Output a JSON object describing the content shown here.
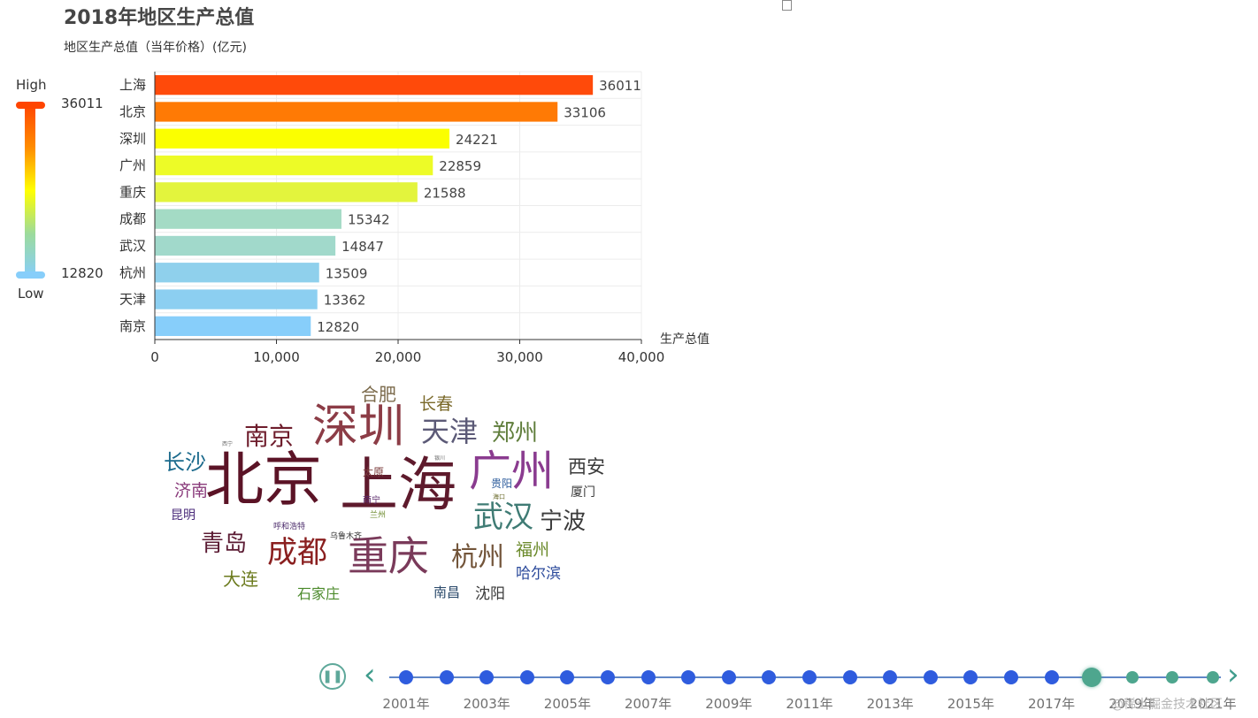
{
  "title": "2018年地区生产总值",
  "subtitle": "地区生产总值（当年价格）(亿元)",
  "visual_map": {
    "high_label": "High",
    "low_label": "Low",
    "max_value": "36011",
    "min_value": "12820",
    "colors": [
      "#ff4500",
      "#ff8c00",
      "#ffff00",
      "#9cdb9c",
      "#87cefa"
    ]
  },
  "chart_data": [
    {
      "type": "bar",
      "orientation": "horizontal",
      "title": "2018年地区生产总值",
      "subtitle": "地区生产总值（当年价格）(亿元)",
      "categories": [
        "上海",
        "北京",
        "深圳",
        "广州",
        "重庆",
        "成都",
        "武汉",
        "杭州",
        "天津",
        "南京"
      ],
      "values": [
        36011,
        33106,
        24221,
        22859,
        21588,
        15342,
        14847,
        13509,
        13362,
        12820
      ],
      "bar_colors": [
        "#ff4a0a",
        "#ff7a05",
        "#fbff00",
        "#edfb27",
        "#e3f43d",
        "#a4dbc5",
        "#a1d9cb",
        "#8fd0ec",
        "#8ccff1",
        "#87cefa"
      ],
      "xlabel": "生产总值",
      "xlim": [
        0,
        40000
      ],
      "xticks": [
        "0",
        "10,000",
        "20,000",
        "30,000",
        "40,000"
      ],
      "grid": true
    },
    {
      "type": "wordcloud",
      "words": [
        {
          "text": "北京",
          "size": 66,
          "color": "#5b1326"
        },
        {
          "text": "上海",
          "size": 66,
          "color": "#5e1a2c"
        },
        {
          "text": "深圳",
          "size": 52,
          "color": "#8c3c46"
        },
        {
          "text": "广州",
          "size": 48,
          "color": "#8a3b8f"
        },
        {
          "text": "重庆",
          "size": 46,
          "color": "#7a3a5a"
        },
        {
          "text": "天津",
          "size": 32,
          "color": "#5c5a77"
        },
        {
          "text": "武汉",
          "size": 34,
          "color": "#3f7b74"
        },
        {
          "text": "成都",
          "size": 34,
          "color": "#8a1f1f"
        },
        {
          "text": "杭州",
          "size": 30,
          "color": "#73553a"
        },
        {
          "text": "南京",
          "size": 28,
          "color": "#6e1d2c"
        },
        {
          "text": "郑州",
          "size": 26,
          "color": "#5f7d3b"
        },
        {
          "text": "宁波",
          "size": 26,
          "color": "#3b3b3b"
        },
        {
          "text": "青岛",
          "size": 26,
          "color": "#5b1b33"
        },
        {
          "text": "长沙",
          "size": 24,
          "color": "#1b6a8c"
        },
        {
          "text": "西安",
          "size": 21,
          "color": "#3b3b3b"
        },
        {
          "text": "大连",
          "size": 20,
          "color": "#6b7a1c"
        },
        {
          "text": "合肥",
          "size": 20,
          "color": "#7b6a4b"
        },
        {
          "text": "济南",
          "size": 19,
          "color": "#8a3b7b"
        },
        {
          "text": "长春",
          "size": 19,
          "color": "#7b6a2b"
        },
        {
          "text": "福州",
          "size": 19,
          "color": "#6b8a2b"
        },
        {
          "text": "哈尔滨",
          "size": 17,
          "color": "#2b4a9b"
        },
        {
          "text": "沈阳",
          "size": 17,
          "color": "#3b3b3b"
        },
        {
          "text": "石家庄",
          "size": 16,
          "color": "#4b8a2b"
        },
        {
          "text": "南昌",
          "size": 15,
          "color": "#2b4a6b"
        },
        {
          "text": "昆明",
          "size": 14,
          "color": "#4b2b7b"
        },
        {
          "text": "厦门",
          "size": 14,
          "color": "#3b3b3b"
        },
        {
          "text": "贵阳",
          "size": 12,
          "color": "#2b5b9b"
        },
        {
          "text": "太原",
          "size": 12,
          "color": "#7b3b3b"
        },
        {
          "text": "南宁",
          "size": 10,
          "color": "#5b2b6b"
        },
        {
          "text": "兰州",
          "size": 9,
          "color": "#6b8a2b"
        },
        {
          "text": "呼和浩特",
          "size": 9,
          "color": "#4b2b6b"
        },
        {
          "text": "乌鲁木齐",
          "size": 9,
          "color": "#3b3b3b"
        },
        {
          "text": "海口",
          "size": 7,
          "color": "#6b6b2b"
        },
        {
          "text": "西宁",
          "size": 6,
          "color": "#6b6b6b"
        },
        {
          "text": "银川",
          "size": 6,
          "color": "#6b6b6b"
        }
      ]
    }
  ],
  "timeline": {
    "play_icon": "pause-icon",
    "years": [
      "2001年",
      "2002年",
      "2003年",
      "2004年",
      "2005年",
      "2006年",
      "2007年",
      "2008年",
      "2009年",
      "2010年",
      "2011年",
      "2012年",
      "2013年",
      "2014年",
      "2015年",
      "2016年",
      "2017年",
      "2018年",
      "2019年",
      "2020年",
      "2021年"
    ],
    "visible_labels": [
      "2001年",
      "2003年",
      "2005年",
      "2007年",
      "2009年",
      "2011年",
      "2013年",
      "2015年",
      "2017年",
      "2019年",
      "2021年"
    ],
    "current": "2018年",
    "active_color": "#4ea68e",
    "inactive_color": "#2f5cde"
  },
  "watermark": "@稀土掘金技术社区"
}
